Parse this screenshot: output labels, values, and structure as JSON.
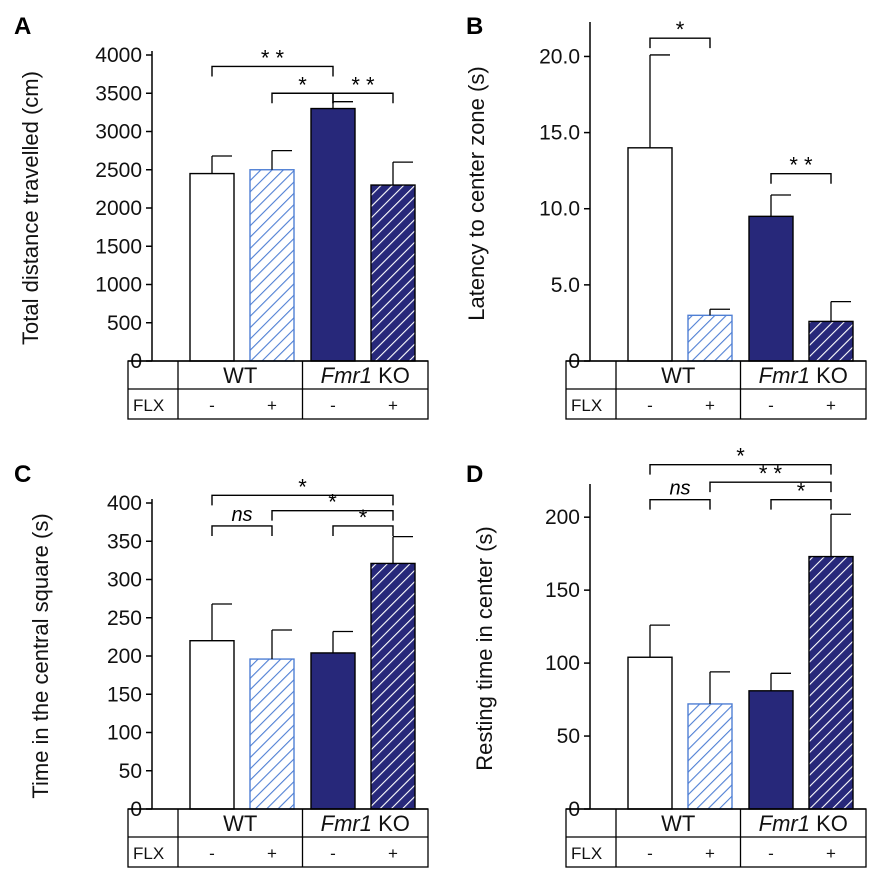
{
  "chart_data": [
    {
      "panel": "A",
      "type": "bar",
      "ylabel": "Total distance travelled (cm)",
      "ylim": [
        0,
        4000
      ],
      "yticks": [
        "0",
        "500",
        "1000",
        "1500",
        "2000",
        "2500",
        "3000",
        "3500",
        "4000"
      ],
      "groups": [
        {
          "label_italic": "",
          "label": "WT"
        },
        {
          "label_italic": "Fmr1",
          "label": " KO"
        }
      ],
      "treatment_label": "FLX",
      "treatment": [
        "-",
        "+",
        "-",
        "+"
      ],
      "values": [
        2450,
        2500,
        3300,
        2300
      ],
      "errors": [
        230,
        250,
        90,
        300
      ],
      "styles": [
        "open",
        "hatch-light",
        "solid",
        "hatch-dark"
      ],
      "significance": [
        {
          "from": 0,
          "to": 2,
          "label": "**",
          "y": 3850
        },
        {
          "from": 1,
          "to": 2,
          "label": "*",
          "y": 3500
        },
        {
          "from": 2,
          "to": 3,
          "label": "**",
          "y": 3500
        }
      ]
    },
    {
      "panel": "B",
      "type": "bar",
      "ylabel": "Latency to center zone (s)",
      "ylim": [
        0,
        22
      ],
      "yticks": [
        "0",
        "5.0",
        "10.0",
        "15.0",
        "20.0"
      ],
      "groups": [
        {
          "label_italic": "",
          "label": "WT"
        },
        {
          "label_italic": "Fmr1",
          "label": " KO"
        }
      ],
      "treatment_label": "FLX",
      "treatment": [
        "-",
        "+",
        "-",
        "+"
      ],
      "values": [
        14.0,
        3.0,
        9.5,
        2.6
      ],
      "errors": [
        6.1,
        0.4,
        1.4,
        1.3
      ],
      "styles": [
        "open",
        "hatch-light",
        "solid",
        "hatch-dark"
      ],
      "significance": [
        {
          "from": 0,
          "to": 1,
          "label": "*",
          "y": 21.2
        },
        {
          "from": 2,
          "to": 3,
          "label": "**",
          "y": 12.3
        }
      ]
    },
    {
      "panel": "C",
      "type": "bar",
      "ylabel": "Time in the central square (s)",
      "ylim": [
        0,
        400
      ],
      "yticks": [
        "0",
        "50",
        "100",
        "150",
        "200",
        "250",
        "300",
        "350",
        "400"
      ],
      "groups": [
        {
          "label_italic": "",
          "label": "WT"
        },
        {
          "label_italic": "Fmr1",
          "label": " KO"
        }
      ],
      "treatment_label": "FLX",
      "treatment": [
        "-",
        "+",
        "-",
        "+"
      ],
      "values": [
        220,
        196,
        204,
        321
      ],
      "errors": [
        48,
        38,
        28,
        35
      ],
      "styles": [
        "open",
        "hatch-light",
        "solid",
        "hatch-dark"
      ],
      "significance": [
        {
          "from": 0,
          "to": 3,
          "label": "*",
          "y": 410
        },
        {
          "from": 1,
          "to": 3,
          "label": "*",
          "y": 390
        },
        {
          "from": 2,
          "to": 3,
          "label": "*",
          "y": 370
        },
        {
          "from": 0,
          "to": 1,
          "label": "ns",
          "y": 370
        }
      ]
    },
    {
      "panel": "D",
      "type": "bar",
      "ylabel": "Resting time in center  (s)",
      "ylim": [
        0,
        220
      ],
      "yticks": [
        "0",
        "50",
        "100",
        "150",
        "200"
      ],
      "groups": [
        {
          "label_italic": "",
          "label": "WT"
        },
        {
          "label_italic": "Fmr1",
          "label": " KO"
        }
      ],
      "treatment_label": "FLX",
      "treatment": [
        "-",
        "+",
        "-",
        "+"
      ],
      "values": [
        104,
        72,
        81,
        173
      ],
      "errors": [
        22,
        22,
        12,
        29
      ],
      "styles": [
        "open",
        "hatch-light",
        "solid",
        "hatch-dark"
      ],
      "significance": [
        {
          "from": 0,
          "to": 3,
          "label": "*",
          "y": 236
        },
        {
          "from": 1,
          "to": 3,
          "label": "**",
          "y": 224
        },
        {
          "from": 2,
          "to": 3,
          "label": "*",
          "y": 212
        },
        {
          "from": 0,
          "to": 1,
          "label": "ns",
          "y": 212
        }
      ]
    }
  ],
  "colors": {
    "solid": "#27287a",
    "hatch_light": "#4f7fd4",
    "hatch_dark": "#27287a",
    "open": "#ffffff"
  }
}
